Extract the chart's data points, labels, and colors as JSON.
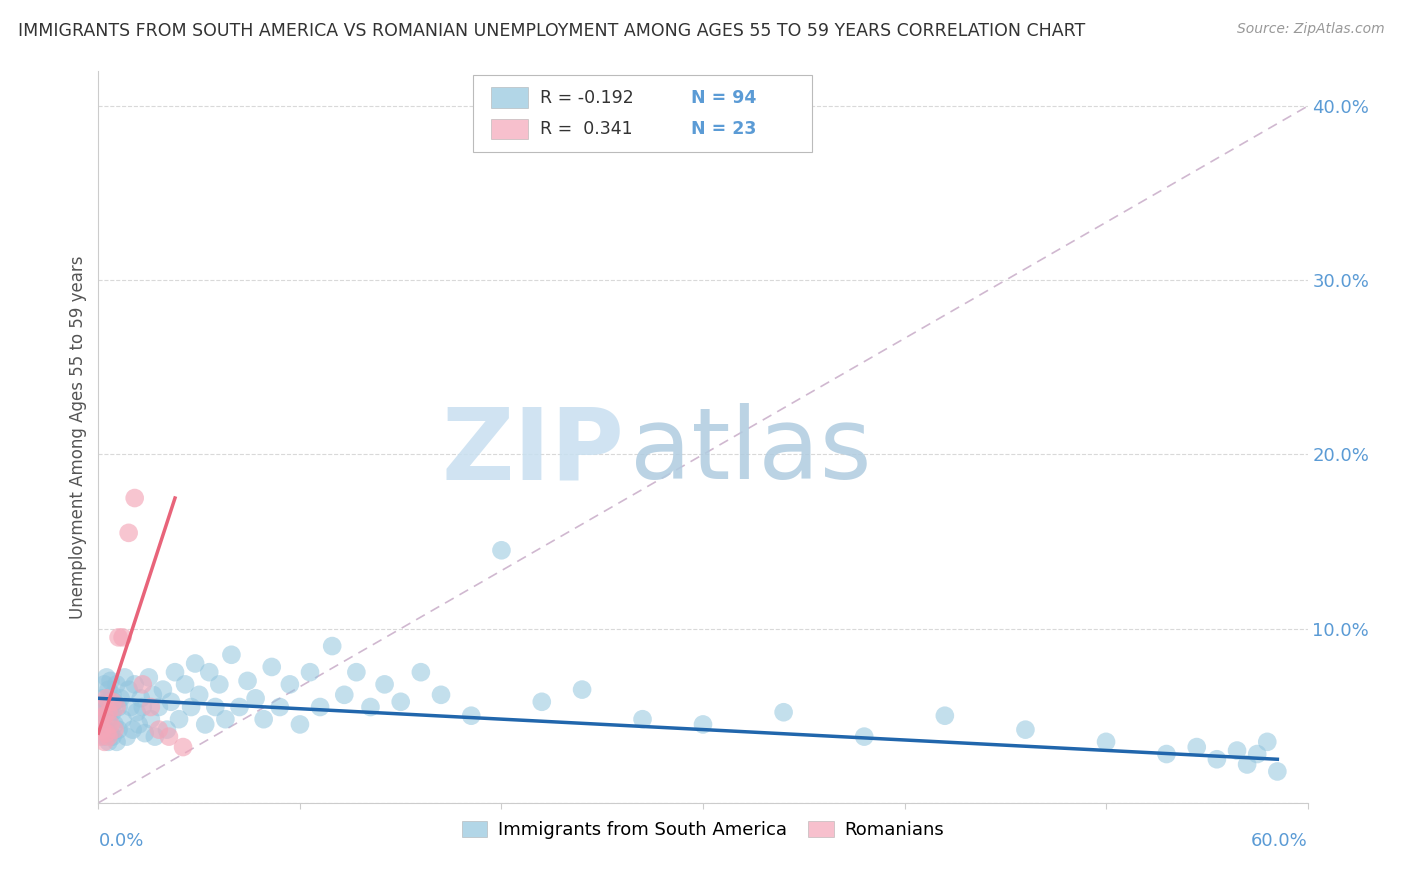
{
  "title": "IMMIGRANTS FROM SOUTH AMERICA VS ROMANIAN UNEMPLOYMENT AMONG AGES 55 TO 59 YEARS CORRELATION CHART",
  "source": "Source: ZipAtlas.com",
  "ylabel": "Unemployment Among Ages 55 to 59 years",
  "blue_R": "-0.192",
  "blue_N": "94",
  "pink_R": "0.341",
  "pink_N": "23",
  "blue_color": "#92c5de",
  "pink_color": "#f4a6b8",
  "blue_line_color": "#2166ac",
  "pink_line_color": "#e8647a",
  "diag_line_color": "#d0b8d0",
  "legend_label_blue": "Immigrants from South America",
  "legend_label_pink": "Romanians",
  "watermark_zip": "ZIP",
  "watermark_atlas": "atlas",
  "xlim": [
    0.0,
    0.6
  ],
  "ylim": [
    0.0,
    0.42
  ],
  "ytick_positions": [
    0.0,
    0.1,
    0.2,
    0.3,
    0.4
  ],
  "ytick_labels": [
    "",
    "10.0%",
    "20.0%",
    "30.0%",
    "40.0%"
  ],
  "blue_x": [
    0.001,
    0.002,
    0.002,
    0.003,
    0.003,
    0.003,
    0.004,
    0.004,
    0.004,
    0.005,
    0.005,
    0.005,
    0.006,
    0.006,
    0.006,
    0.007,
    0.007,
    0.007,
    0.008,
    0.008,
    0.009,
    0.009,
    0.01,
    0.01,
    0.011,
    0.012,
    0.013,
    0.014,
    0.015,
    0.016,
    0.017,
    0.018,
    0.019,
    0.02,
    0.021,
    0.022,
    0.023,
    0.025,
    0.026,
    0.027,
    0.028,
    0.03,
    0.032,
    0.034,
    0.036,
    0.038,
    0.04,
    0.043,
    0.046,
    0.048,
    0.05,
    0.053,
    0.055,
    0.058,
    0.06,
    0.063,
    0.066,
    0.07,
    0.074,
    0.078,
    0.082,
    0.086,
    0.09,
    0.095,
    0.1,
    0.105,
    0.11,
    0.116,
    0.122,
    0.128,
    0.135,
    0.142,
    0.15,
    0.16,
    0.17,
    0.185,
    0.2,
    0.22,
    0.24,
    0.27,
    0.3,
    0.34,
    0.38,
    0.42,
    0.46,
    0.5,
    0.53,
    0.545,
    0.555,
    0.565,
    0.57,
    0.575,
    0.58,
    0.585
  ],
  "blue_y": [
    0.052,
    0.045,
    0.06,
    0.038,
    0.055,
    0.068,
    0.042,
    0.058,
    0.072,
    0.035,
    0.048,
    0.065,
    0.04,
    0.055,
    0.07,
    0.038,
    0.052,
    0.062,
    0.045,
    0.058,
    0.035,
    0.068,
    0.042,
    0.055,
    0.06,
    0.048,
    0.072,
    0.038,
    0.065,
    0.055,
    0.042,
    0.068,
    0.052,
    0.045,
    0.06,
    0.055,
    0.04,
    0.072,
    0.048,
    0.062,
    0.038,
    0.055,
    0.065,
    0.042,
    0.058,
    0.075,
    0.048,
    0.068,
    0.055,
    0.08,
    0.062,
    0.045,
    0.075,
    0.055,
    0.068,
    0.048,
    0.085,
    0.055,
    0.07,
    0.06,
    0.048,
    0.078,
    0.055,
    0.068,
    0.045,
    0.075,
    0.055,
    0.09,
    0.062,
    0.075,
    0.055,
    0.068,
    0.058,
    0.075,
    0.062,
    0.05,
    0.145,
    0.058,
    0.065,
    0.048,
    0.045,
    0.052,
    0.038,
    0.05,
    0.042,
    0.035,
    0.028,
    0.032,
    0.025,
    0.03,
    0.022,
    0.028,
    0.035,
    0.018
  ],
  "pink_x": [
    0.001,
    0.001,
    0.002,
    0.002,
    0.003,
    0.003,
    0.004,
    0.004,
    0.005,
    0.005,
    0.006,
    0.007,
    0.008,
    0.009,
    0.01,
    0.012,
    0.015,
    0.018,
    0.022,
    0.026,
    0.03,
    0.035,
    0.042
  ],
  "pink_y": [
    0.038,
    0.048,
    0.042,
    0.055,
    0.035,
    0.05,
    0.04,
    0.06,
    0.038,
    0.052,
    0.045,
    0.058,
    0.042,
    0.055,
    0.095,
    0.095,
    0.155,
    0.175,
    0.068,
    0.055,
    0.042,
    0.038,
    0.032
  ],
  "pink_line_x_start": 0.0,
  "pink_line_x_end": 0.038,
  "pink_line_y_start": 0.04,
  "pink_line_y_end": 0.175,
  "blue_line_x_start": 0.0,
  "blue_line_x_end": 0.585,
  "blue_line_y_start": 0.06,
  "blue_line_y_end": 0.025
}
